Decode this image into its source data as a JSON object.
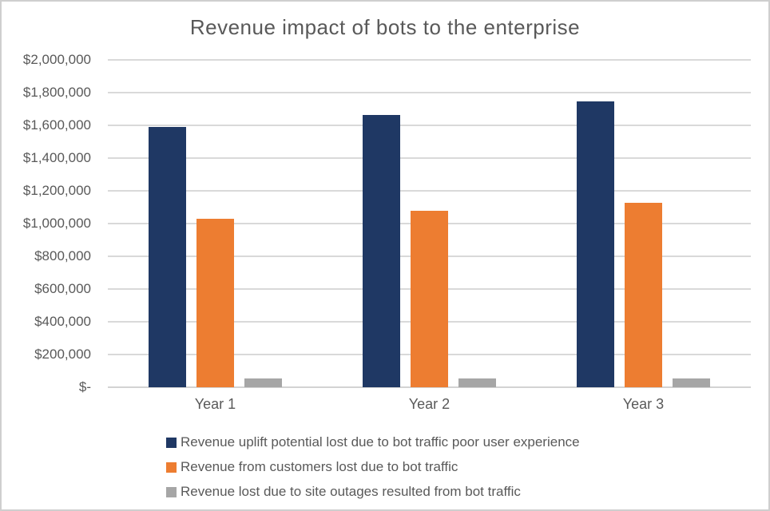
{
  "chart_data": {
    "type": "bar",
    "title": "Revenue impact of bots to the enterprise",
    "categories": [
      "Year 1",
      "Year 2",
      "Year 3"
    ],
    "series": [
      {
        "name": "Revenue uplift potential lost due to bot traffic poor user experience",
        "color": "#1F3864",
        "values": [
          1590000,
          1665000,
          1745000
        ]
      },
      {
        "name": "Revenue from customers lost due to bot traffic",
        "color": "#ED7D31",
        "values": [
          1030000,
          1080000,
          1125000
        ]
      },
      {
        "name": "Revenue lost due to site outages resulted from bot traffic",
        "color": "#A6A6A6",
        "values": [
          55000,
          55000,
          55000
        ]
      }
    ],
    "xlabel": "",
    "ylabel": "",
    "y_axis": {
      "min": 0,
      "max": 2000000,
      "step": 200000,
      "tick_labels": [
        "$-",
        "$200,000",
        "$400,000",
        "$600,000",
        "$800,000",
        "$1,000,000",
        "$1,200,000",
        "$1,400,000",
        "$1,600,000",
        "$1,800,000",
        "$2,000,000"
      ]
    },
    "grid": true,
    "legend_position": "bottom-left",
    "styles": {
      "text_color": "#595959",
      "gridline_color": "#D9D9D9",
      "axis_line_color": "#D3D3D3",
      "background": "#FFFFFF",
      "border_color": "#CFCFCF"
    }
  }
}
